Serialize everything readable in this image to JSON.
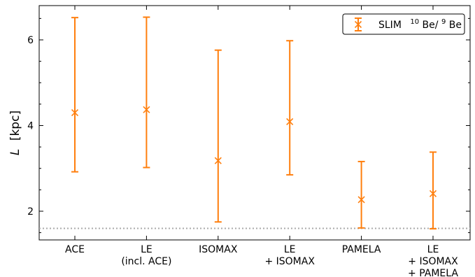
{
  "chart_data": {
    "type": "scatter",
    "title": "",
    "ylabel_symbol": "L",
    "ylabel_unit": "[kpc]",
    "xlabel": "",
    "categories": [
      [
        "ACE"
      ],
      [
        "LE",
        "(incl. ACE)"
      ],
      [
        "ISOMAX"
      ],
      [
        "LE",
        "+ ISOMAX"
      ],
      [
        "PAMELA"
      ],
      [
        "LE",
        "+ ISOMAX",
        "+ PAMELA"
      ]
    ],
    "series": [
      {
        "name": "SLIM 10Be/9Be",
        "name_prefix": "SLIM",
        "name_isotope_num_mass": "10",
        "name_isotope_num": "Be/",
        "name_isotope_den_mass": "9",
        "name_isotope_den": "Be",
        "marker": "x",
        "color": "#ff7f0e",
        "values": [
          4.3,
          4.37,
          3.18,
          4.09,
          2.27,
          2.41
        ],
        "err_low": [
          2.92,
          3.02,
          1.75,
          2.85,
          1.61,
          1.59
        ],
        "err_high": [
          6.52,
          6.53,
          5.76,
          5.98,
          3.16,
          3.38
        ]
      }
    ],
    "reference_line": {
      "y": 1.6,
      "style": "dotted",
      "color": "#aaaaaa"
    },
    "ylim": [
      1.33,
      6.8
    ],
    "yticks": [
      2,
      4,
      6
    ],
    "yminor_step": 0.5,
    "grid": false,
    "legend_position": "top-right"
  }
}
